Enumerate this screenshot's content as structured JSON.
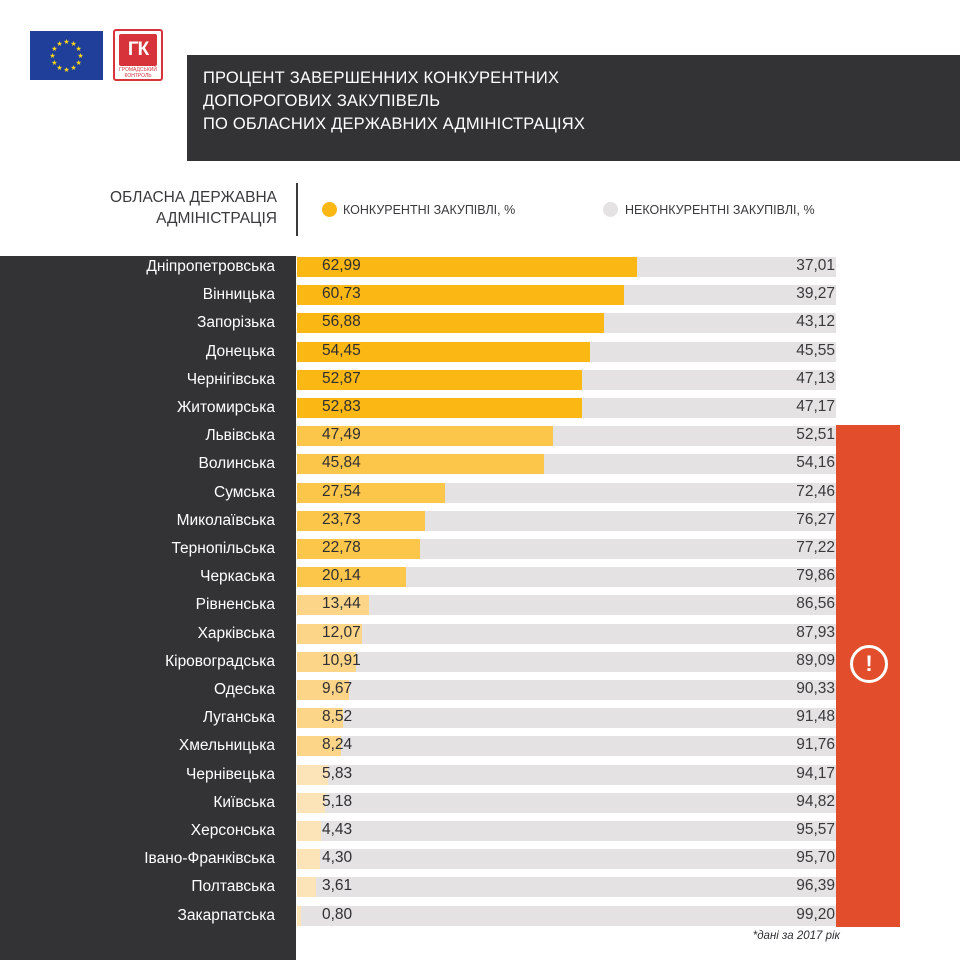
{
  "logos": {
    "gk_badge_text": "ГК",
    "gk_sub_text_1": "ГРОМАДСЬКИЙ",
    "gk_sub_text_2": "КОНТРОЛЬ"
  },
  "header": {
    "title_lines": [
      "ПРОЦЕНТ ЗАВЕРШЕННИХ КОНКУРЕНТНИХ",
      "ДОПОРОГОВИХ ЗАКУПІВЕЛЬ",
      "ПО ОБЛАСНИХ ДЕРЖАВНИХ АДМІНІСТРАЦІЯХ"
    ],
    "column_label_1": "ОБЛАСНА ДЕРЖАВНА",
    "column_label_2": "АДМІНІСТРАЦІЯ"
  },
  "footnote": "*дані за 2017 рік",
  "colors": {
    "competitive_dark": "#fbb713",
    "competitive_mid": "#fcc64a",
    "competitive_light": "#fdd588",
    "competitive_pale": "#fde3b8",
    "noncompetitive": "#e4e2e2",
    "panel_dark": "#333336",
    "alert": "#e24d2c"
  },
  "chart_data": {
    "type": "bar",
    "orientation": "horizontal-stacked",
    "categories": [
      "Дніпропетровська",
      "Вінницька",
      "Запорізька",
      "Донецька",
      "Чернігівська",
      "Житомирська",
      "Львівська",
      "Волинська",
      "Сумська",
      "Миколаївська",
      "Тернопільська",
      "Черкаська",
      "Рівненська",
      "Харківська",
      "Кіровоградська",
      "Одеська",
      "Луганська",
      "Хмельницька",
      "Чернівецька",
      "Київська",
      "Херсонська",
      "Івано-Франківська",
      "Полтавська",
      "Закарпатська"
    ],
    "series": [
      {
        "name": "КОНКУРЕНТНІ ЗАКУПІВЛІ, %",
        "values": [
          62.99,
          60.73,
          56.88,
          54.45,
          52.87,
          52.83,
          47.49,
          45.84,
          27.54,
          23.73,
          22.78,
          20.14,
          13.44,
          12.07,
          10.91,
          9.67,
          8.52,
          8.24,
          5.83,
          5.18,
          4.43,
          4.3,
          3.61,
          0.8
        ],
        "labels": [
          "62,99",
          "60,73",
          "56,88",
          "54,45",
          "52,87",
          "52,83",
          "47,49",
          "45,84",
          "27,54",
          "23,73",
          "22,78",
          "20,14",
          "13,44",
          "12,07",
          "10,91",
          "9,67",
          "8,52",
          "8,24",
          "5,83",
          "5,18",
          "4,43",
          "4,30",
          "3,61",
          "0,80"
        ]
      },
      {
        "name": "НЕКОНКУРЕНТНІ ЗАКУПІВЛІ, %",
        "values": [
          37.01,
          39.27,
          43.12,
          45.55,
          47.13,
          47.17,
          52.51,
          54.16,
          72.46,
          76.27,
          77.22,
          79.86,
          86.56,
          87.93,
          89.09,
          90.33,
          91.48,
          91.76,
          94.17,
          94.82,
          95.57,
          95.7,
          96.39,
          99.2
        ],
        "labels": [
          "37,01",
          "39,27",
          "43,12",
          "45,55",
          "47,13",
          "47,17",
          "52,51",
          "54,16",
          "72,46",
          "76,27",
          "77,22",
          "79,86",
          "86,56",
          "87,93",
          "89,09",
          "90,33",
          "91,48",
          "91,76",
          "94,17",
          "94,82",
          "95,57",
          "95,70",
          "96,39",
          "99,20"
        ]
      }
    ],
    "xlim": [
      0,
      100
    ],
    "grid": false,
    "legend_position": "top"
  }
}
